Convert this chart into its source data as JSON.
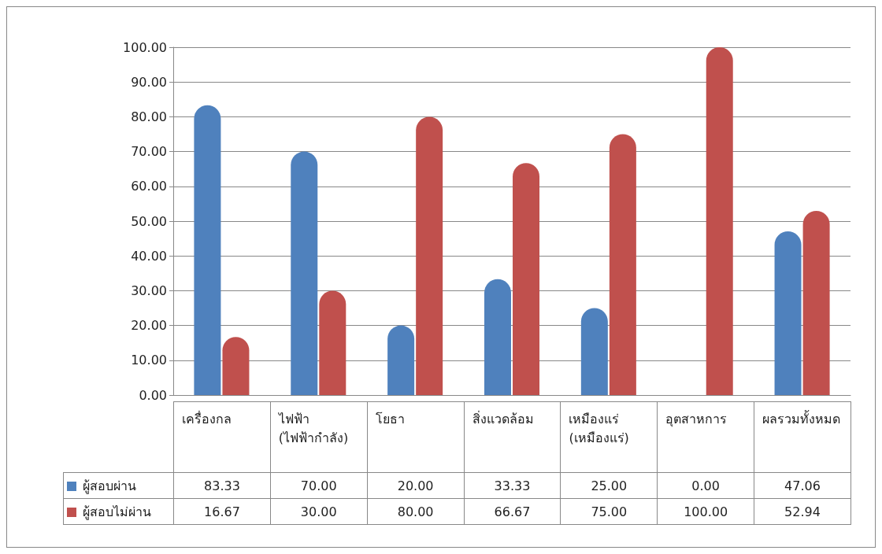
{
  "chart_data": {
    "type": "bar",
    "categories": [
      "เครื่องกล",
      "ไฟฟ้า (ไฟฟ้ากำลัง)",
      "โยธา",
      "สิ่งแวดล้อม",
      "เหมืองแร่ (เหมืองแร่)",
      "อุตสาหการ",
      "ผลรวมทั้งหมด"
    ],
    "series": [
      {
        "name": "ผู้สอบผ่าน",
        "color": "#4f81bd",
        "values": [
          83.33,
          70.0,
          20.0,
          33.33,
          25.0,
          0.0,
          47.06
        ],
        "value_labels": [
          "83.33",
          "70.00",
          "20.00",
          "33.33",
          "25.00",
          "0.00",
          "47.06"
        ]
      },
      {
        "name": "ผู้สอบไม่ผ่าน",
        "color": "#c0504d",
        "values": [
          16.67,
          30.0,
          80.0,
          66.67,
          75.0,
          100.0,
          52.94
        ],
        "value_labels": [
          "16.67",
          "30.00",
          "80.00",
          "66.67",
          "75.00",
          "100.00",
          "52.94"
        ]
      }
    ],
    "ylim": [
      0,
      100
    ],
    "yticks": [
      {
        "value": 0,
        "label": "0.00"
      },
      {
        "value": 10,
        "label": "10.00"
      },
      {
        "value": 20,
        "label": "20.00"
      },
      {
        "value": 30,
        "label": "30.00"
      },
      {
        "value": 40,
        "label": "40.00"
      },
      {
        "value": 50,
        "label": "50.00"
      },
      {
        "value": 60,
        "label": "60.00"
      },
      {
        "value": 70,
        "label": "70.00"
      },
      {
        "value": 80,
        "label": "80.00"
      },
      {
        "value": 90,
        "label": "90.00"
      },
      {
        "value": 100,
        "label": "100.00"
      }
    ],
    "grid": "y",
    "legend": "bottom left"
  }
}
